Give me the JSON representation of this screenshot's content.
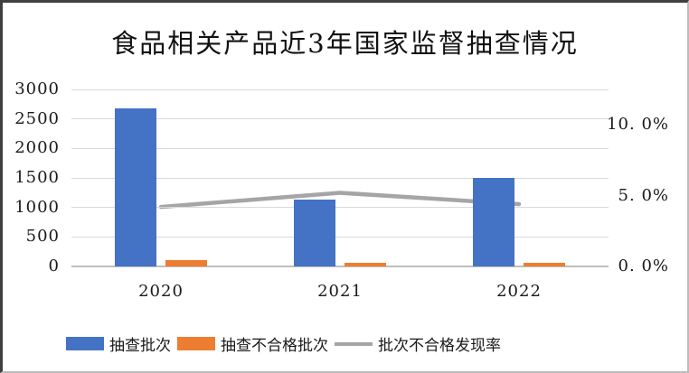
{
  "title": "食品相关产品近3年国家监督抽查情况",
  "colors": {
    "bar_sampled": "#4472C4",
    "bar_failed": "#ED7D31",
    "line_rate": "#A5A5A5",
    "grid": "#D9D9D9",
    "axis_baseline": "#BFBFBF",
    "text": "#1A1A1A"
  },
  "chart_data": {
    "type": "bar",
    "subtype": "combo bar + line, dual axis",
    "title": "食品相关产品近3年国家监督抽查情况",
    "categories": [
      "2020",
      "2021",
      "2022"
    ],
    "series": [
      {
        "name": "抽查批次",
        "type": "bar",
        "axis": "left",
        "color": "#4472C4",
        "values": [
          2680,
          1130,
          1500
        ]
      },
      {
        "name": "抽查不合格批次",
        "type": "bar",
        "axis": "left",
        "color": "#ED7D31",
        "values": [
          110,
          60,
          65
        ]
      },
      {
        "name": "批次不合格发现率",
        "type": "line",
        "axis": "right",
        "color": "#A5A5A5",
        "unit": "%",
        "values": [
          4.2,
          5.2,
          4.4
        ]
      }
    ],
    "left_axis": {
      "min": 0,
      "max": 3000,
      "step": 500,
      "tick_labels": [
        "3000",
        "2500",
        "2000",
        "1500",
        "1000",
        "500",
        "0"
      ],
      "tick_values": [
        3000,
        2500,
        2000,
        1500,
        1000,
        500,
        0
      ]
    },
    "right_axis": {
      "min": 0,
      "max": 12.5,
      "tick_labels": [
        "10. 0%",
        "5. 0%",
        "0. 0%"
      ],
      "tick_values": [
        10,
        5,
        0
      ]
    },
    "grid": true,
    "legend_position": "bottom"
  }
}
